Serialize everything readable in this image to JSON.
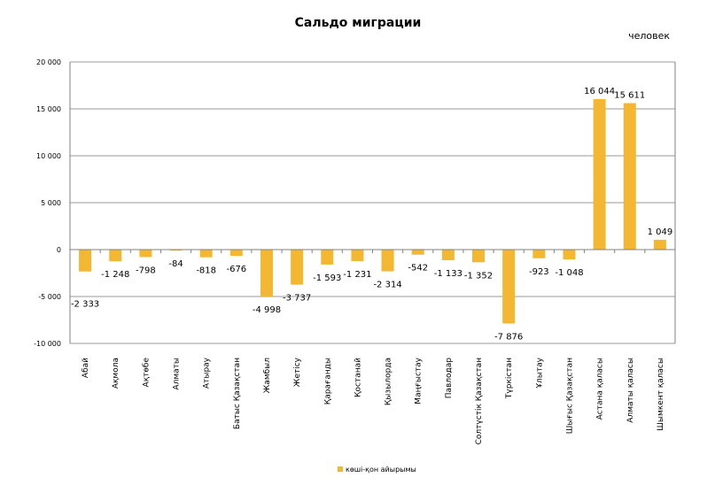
{
  "chart_data": {
    "type": "bar",
    "title": "Сальдо миграции",
    "unit_label": "человек",
    "categories": [
      "Абай",
      "Ақмола",
      "Ақтөбе",
      "Алматы",
      "Атырау",
      "Батыс Қазақстан",
      "Жамбыл",
      "Жетісу",
      "Қарағанды",
      "Қостанай",
      "Қызылорда",
      "Маңғыстау",
      "Павлодар",
      "Солтүстік Қазақстан",
      "Түркістан",
      "Ұлытау",
      "Шығыс Қазақстан",
      "Астана қаласы",
      "Алматы қаласы",
      "Шымкент қаласы"
    ],
    "series": [
      {
        "name": "көші-қон айырымы",
        "values": [
          -2333,
          -1248,
          -798,
          -84,
          -818,
          -676,
          -4998,
          -3737,
          -1593,
          -1231,
          -2314,
          -542,
          -1133,
          -1352,
          -7876,
          -923,
          -1048,
          16044,
          15611,
          1049
        ],
        "labels": [
          "-2 333",
          "-1 248",
          "-798",
          "-84",
          "-818",
          "-676",
          "-4 998",
          "-3 737",
          "-1 593",
          "-1 231",
          "-2 314",
          "-542",
          "-1 133",
          "-1 352",
          "-7 876",
          "-923",
          "-1 048",
          "16 044",
          "15 611",
          "1 049"
        ]
      }
    ],
    "ylim": [
      -10000,
      20000
    ],
    "yticks": [
      -10000,
      -5000,
      0,
      5000,
      10000,
      15000,
      20000
    ],
    "ytick_labels": [
      "-10 000",
      "-5 000",
      "0",
      "5 000",
      "10 000",
      "15 000",
      "20 000"
    ],
    "grid": true,
    "legend_position": "bottom",
    "colors": {
      "bar": "#F4B731",
      "grid": "#9a9a9a",
      "axis": "#808080",
      "text": "#000000"
    }
  }
}
